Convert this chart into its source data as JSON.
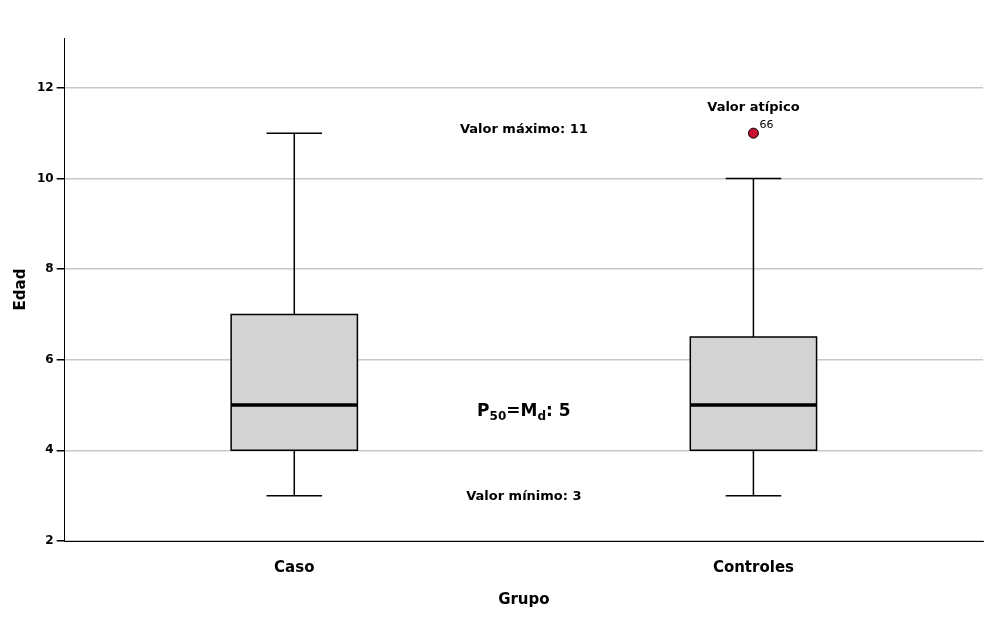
{
  "chart_data": {
    "type": "box",
    "xlabel": "Grupo",
    "ylabel": "Edad",
    "categories": [
      "Caso",
      "Controles"
    ],
    "color": "#d3d3d3",
    "boxes": [
      {
        "low": 3,
        "q1": 4,
        "median": 5,
        "q3": 7,
        "high": 11
      },
      {
        "low": 3,
        "q1": 4,
        "median": 5,
        "q3": 6.5,
        "high": 10,
        "outliers": [
          11
        ]
      }
    ],
    "ylim": [
      2,
      13.1
    ],
    "yticks": [
      2,
      4,
      6,
      8,
      10,
      12
    ],
    "grid": "y",
    "legend": false,
    "annotations": [
      "Valor máximo: 11",
      "P$_{50}$=M$_{d}$: 5",
      "Valor mínimo: 3",
      "Valor atípico",
      "66"
    ]
  }
}
